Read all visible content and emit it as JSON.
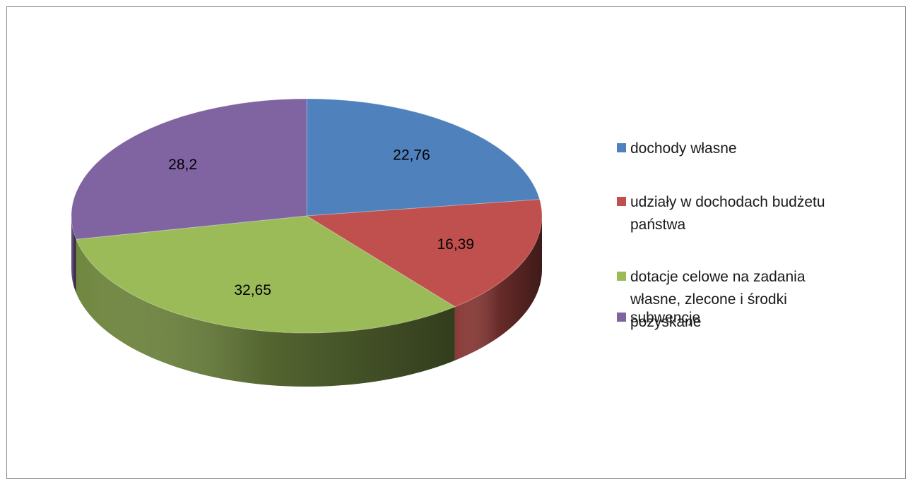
{
  "chart_data": {
    "type": "pie",
    "title": "",
    "labels": [
      "dochody własne",
      "udziały w dochodach budżetu państwa",
      "dotacje celowe na zadania własne, zlecone i środki pozyskane",
      "subwencje"
    ],
    "values": [
      22.76,
      16.39,
      32.65,
      28.2
    ],
    "data_labels": [
      "22,76",
      "16,39",
      "32,65",
      "28,2"
    ],
    "colors": [
      "#4f81bd",
      "#c0504d",
      "#9bbb59",
      "#8064a2"
    ],
    "legend_placement": "right",
    "style": "3d-pie"
  }
}
